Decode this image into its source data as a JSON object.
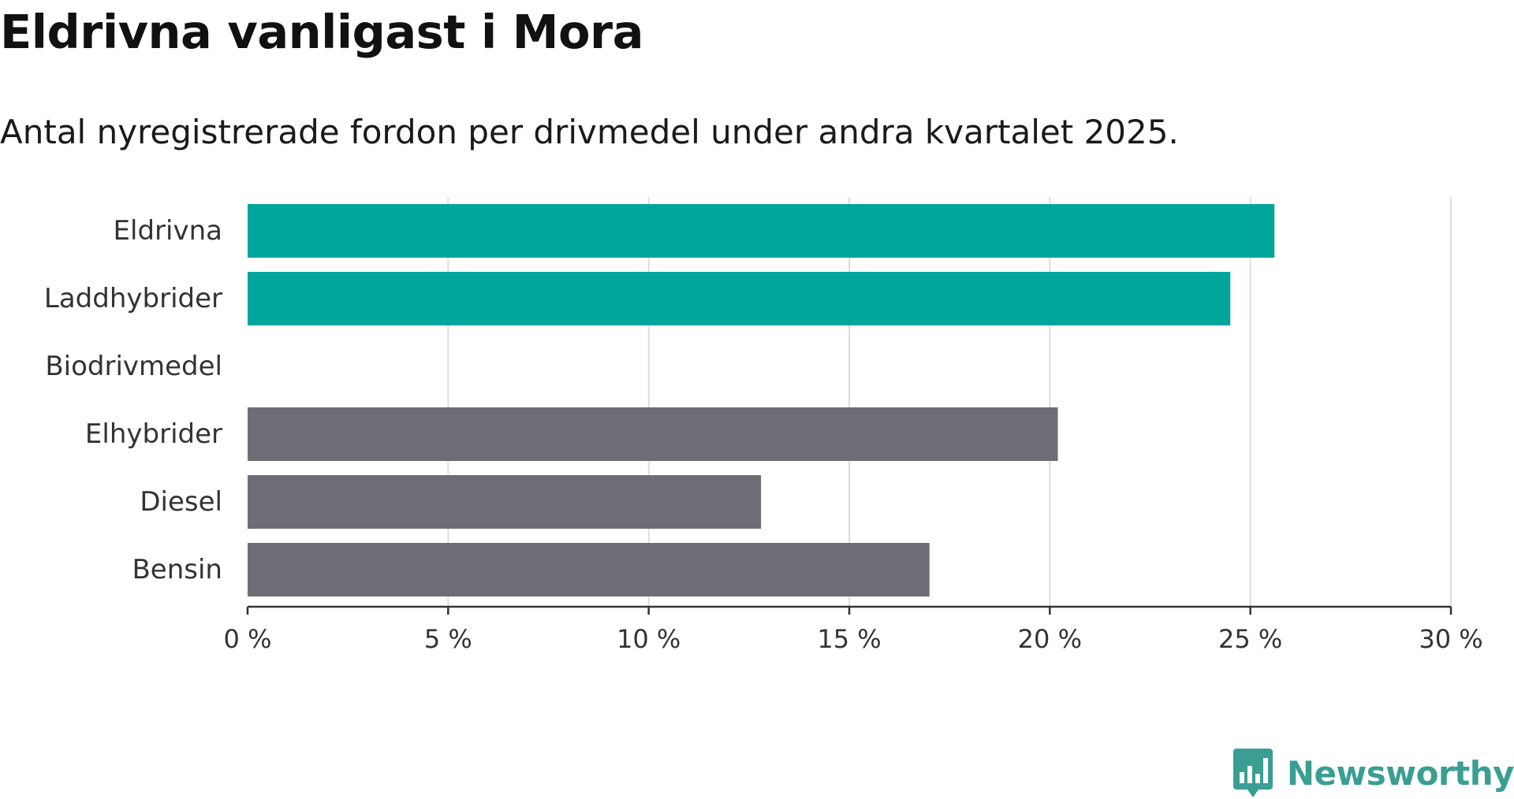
{
  "header": {
    "title": "Eldrivna vanligast i Mora",
    "subtitle": "Antal nyregistrerade fordon per drivmedel under andra kvartalet 2025."
  },
  "chart_data": {
    "type": "bar",
    "orientation": "horizontal",
    "title": "Eldrivna vanligast i Mora",
    "subtitle": "Antal nyregistrerade fordon per drivmedel under andra kvartalet 2025.",
    "categories": [
      "Eldrivna",
      "Laddhybrider",
      "Biodrivmedel",
      "Elhybrider",
      "Diesel",
      "Bensin"
    ],
    "values": [
      25.6,
      24.5,
      0,
      20.2,
      12.8,
      17.0
    ],
    "bar_colors": [
      "#00a59b",
      "#00a59b",
      "#00a59b",
      "#6e6d77",
      "#6e6d77",
      "#6e6d77"
    ],
    "xlim": [
      0,
      30
    ],
    "xticks": [
      0,
      5,
      10,
      15,
      20,
      25,
      30
    ],
    "xtick_labels": [
      "0 %",
      "5 %",
      "10 %",
      "15 %",
      "20 %",
      "25 %",
      "30 %"
    ],
    "xlabel": "",
    "ylabel": "",
    "grid": "vertical",
    "legend": "none"
  },
  "branding": {
    "logo_text": "Newsworthy",
    "logo_icon": "newsworthy-chart-bubble-icon",
    "color": "#3a9e93"
  },
  "colors": {
    "accent": "#00a59b",
    "neutral": "#6e6d77",
    "grid": "#dddddd",
    "axis": "#333333"
  }
}
